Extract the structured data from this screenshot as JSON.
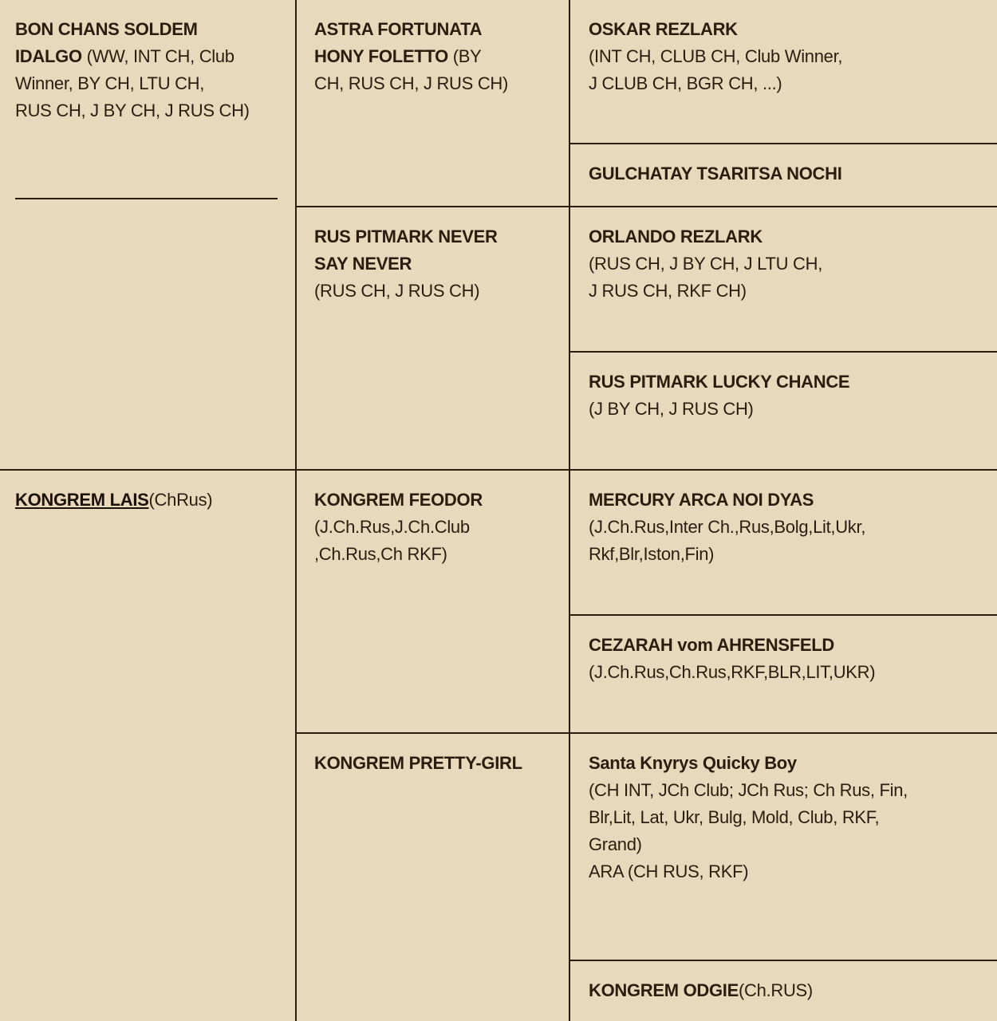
{
  "pedigree": {
    "sire": {
      "name": " BON CHANS SOLDEM\nIDALGO",
      "titles": " (WW, INT CH, Club\nWinner, BY CH, LTU CH,\nRUS CH, J BY CH, J RUS CH)"
    },
    "dam": {
      "name": "KONGREM LAIS",
      "titles": "(ChRus)"
    },
    "grandparents": [
      {
        "name": "ASTRA FORTUNATA\nHONY FOLETTO",
        "titles": " (BY\nCH, RUS CH, J RUS CH)"
      },
      {
        "name": "RUS PITMARK NEVER\nSAY NEVER",
        "titles": "\n(RUS CH, J RUS CH)"
      },
      {
        "name": "KONGREM FEODOR",
        "titles": "\n(J.Ch.Rus,J.Ch.Club\n,Ch.Rus,Ch RKF)"
      },
      {
        "name": "KONGREM PRETTY-GIRL",
        "titles": ""
      }
    ],
    "great_grandparents": [
      {
        "name": "OSKAR REZLARK",
        "titles": "\n(INT CH, CLUB CH, Club Winner,\nJ CLUB CH, BGR CH, ...)"
      },
      {
        "name": "GULCHATAY TSARITSA NOCHI",
        "titles": ""
      },
      {
        "name": "ORLANDO REZLARK",
        "titles": "\n(RUS CH, J BY CH, J LTU CH,\nJ RUS CH, RKF CH)"
      },
      {
        "name": "RUS PITMARK LUCKY CHANCE",
        "titles": "\n(J BY CH, J RUS CH)"
      },
      {
        "name": "MERCURY ARCA NOI DYAS",
        "titles": "\n(J.Ch.Rus,Inter Ch.,Rus,Bolg,Lit,Ukr,\nRkf,Blr,Iston,Fin)"
      },
      {
        "name": "CEZARAH vom AHRENSFELD",
        "titles": "\n(J.Ch.Rus,Ch.Rus,RKF,BLR,LIT,UKR)"
      },
      {
        "name": "Santa Knyrys Quicky Boy",
        "titles": "\n(CH INT, JCh Club; JCh Rus; Ch Rus, Fin,\nBlr,Lit, Lat, Ukr, Bulg, Mold, Club, RKF,\nGrand)\n ARA (CH RUS, RKF)"
      },
      {
        "name": "KONGREM ODGIE",
        "titles": "(Ch.RUS)"
      }
    ]
  },
  "colors": {
    "background": "#E8D8BC",
    "text": "#2B1D0E"
  }
}
